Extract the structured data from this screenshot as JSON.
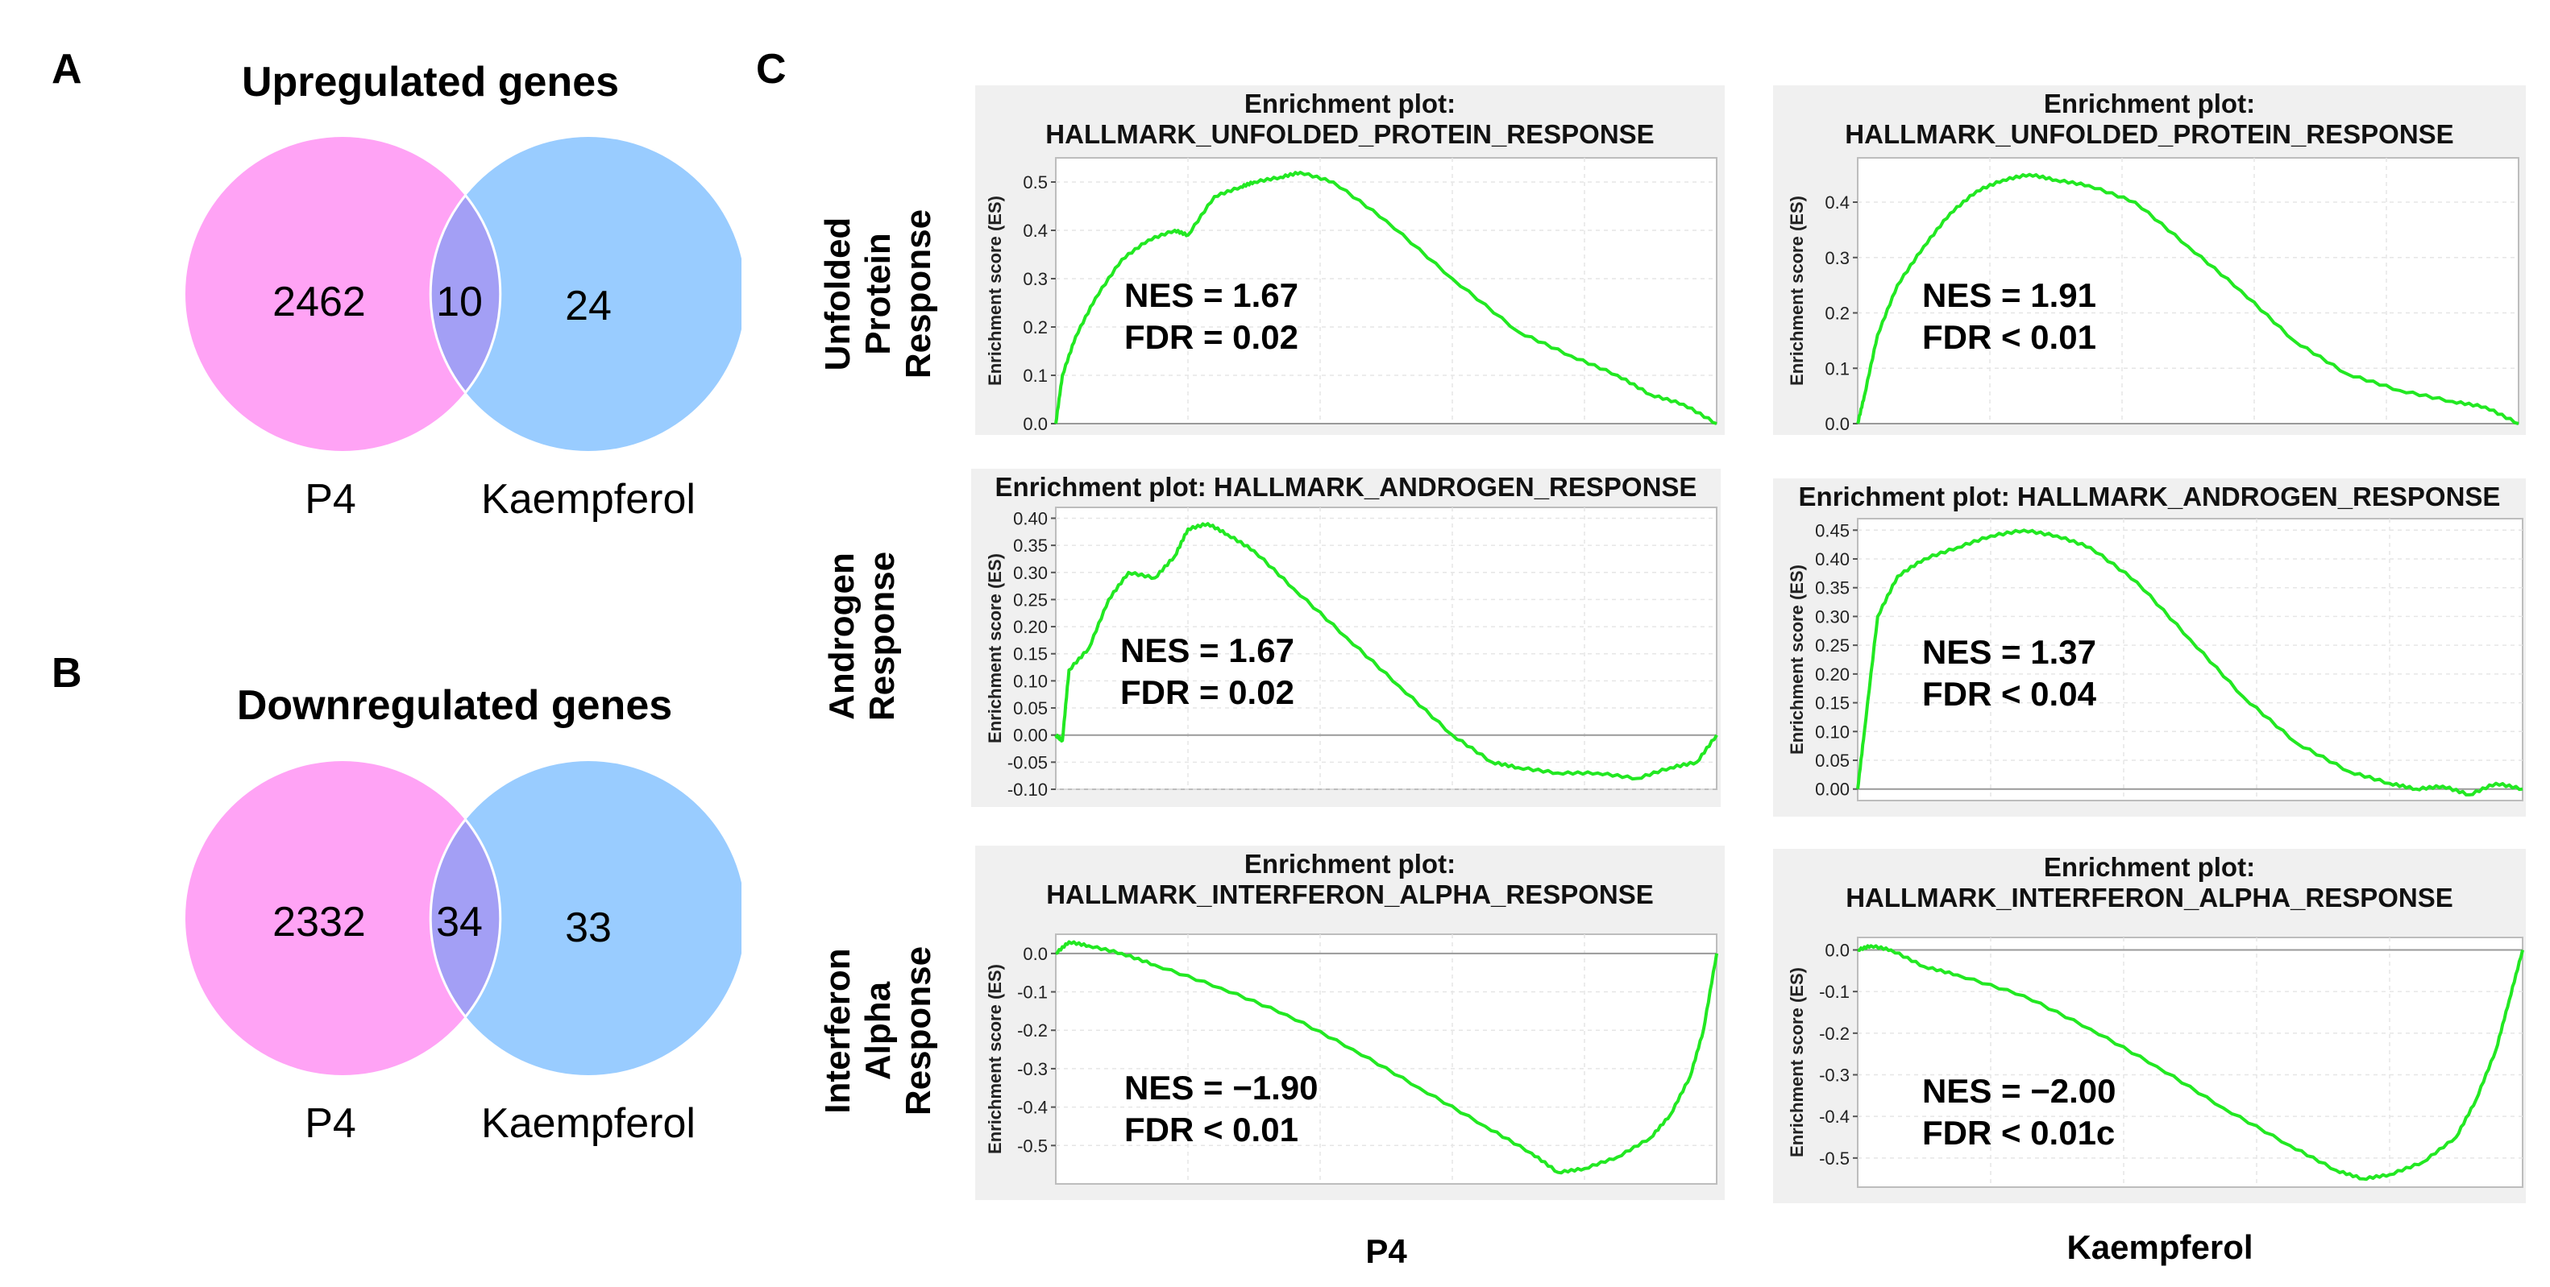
{
  "panels": {
    "a": {
      "letter": "A",
      "title": "Upregulated genes",
      "left_label": "P4",
      "right_label": "Kaempferol",
      "left_only": "2462",
      "overlap": "10",
      "right_only": "24"
    },
    "b": {
      "letter": "B",
      "title": "Downregulated genes",
      "left_label": "P4",
      "right_label": "Kaempferol",
      "left_only": "2332",
      "overlap": "34",
      "right_only": "33"
    },
    "c": {
      "letter": "C",
      "row_labels": [
        "Unfolded Protein Response",
        "Androgen Response",
        "Interferon Alpha Response"
      ],
      "col_labels": [
        "P4",
        "Kaempferol"
      ],
      "y_axis_label": "Enrichment score (ES)"
    }
  },
  "colors": {
    "p4_circle": "#ffa3f5",
    "kaempferol_circle": "#99ccff",
    "overlap": "#a39ff5",
    "curve": "#22e822"
  },
  "chart_data": [
    {
      "type": "line",
      "title": "Enrichment plot:\nHALLMARK_UNFOLDED_PROTEIN_RESPONSE",
      "column": "P4",
      "ylabel": "Enrichment score (ES)",
      "ylim": [
        0,
        0.55
      ],
      "yticks": [
        "0.0",
        "0.1",
        "0.2",
        "0.3",
        "0.4",
        "0.5"
      ],
      "tick_values": [
        0,
        0.1,
        0.2,
        0.3,
        0.4,
        0.5
      ],
      "annotation": [
        "NES = 1.67",
        "FDR = 0.02"
      ],
      "x": [
        0,
        0.01,
        0.03,
        0.06,
        0.1,
        0.14,
        0.18,
        0.2,
        0.24,
        0.28,
        0.3,
        0.34,
        0.37,
        0.42,
        0.5,
        0.6,
        0.7,
        0.78,
        0.85,
        0.9,
        0.95,
        1.0
      ],
      "y": [
        0,
        0.1,
        0.18,
        0.26,
        0.34,
        0.38,
        0.4,
        0.39,
        0.47,
        0.49,
        0.5,
        0.51,
        0.52,
        0.5,
        0.42,
        0.3,
        0.19,
        0.14,
        0.1,
        0.06,
        0.04,
        0.0
      ]
    },
    {
      "type": "line",
      "title": "Enrichment plot:\nHALLMARK_UNFOLDED_PROTEIN_RESPONSE",
      "column": "Kaempferol",
      "ylabel": "Enrichment score (ES)",
      "ylim": [
        0,
        0.48
      ],
      "yticks": [
        "0.0",
        "0.1",
        "0.2",
        "0.3",
        "0.4"
      ],
      "tick_values": [
        0,
        0.1,
        0.2,
        0.3,
        0.4
      ],
      "annotation": [
        "NES = 1.91",
        "FDR < 0.01"
      ],
      "x": [
        0,
        0.01,
        0.03,
        0.06,
        0.1,
        0.14,
        0.18,
        0.22,
        0.26,
        0.3,
        0.35,
        0.42,
        0.5,
        0.58,
        0.66,
        0.74,
        0.82,
        0.9,
        0.95,
        1.0
      ],
      "y": [
        0,
        0.05,
        0.16,
        0.25,
        0.32,
        0.38,
        0.42,
        0.44,
        0.45,
        0.44,
        0.43,
        0.4,
        0.32,
        0.24,
        0.15,
        0.09,
        0.06,
        0.04,
        0.03,
        0.0
      ]
    },
    {
      "type": "line",
      "title": "Enrichment plot: HALLMARK_ANDROGEN_RESPONSE",
      "column": "P4",
      "ylabel": "Enrichment score (ES)",
      "ylim": [
        -0.1,
        0.42
      ],
      "yticks": [
        "-0.10",
        "-0.05",
        "0.00",
        "0.05",
        "0.10",
        "0.15",
        "0.20",
        "0.25",
        "0.30",
        "0.35",
        "0.40"
      ],
      "tick_values": [
        -0.1,
        -0.05,
        0,
        0.05,
        0.1,
        0.15,
        0.2,
        0.25,
        0.3,
        0.35,
        0.4
      ],
      "annotation": [
        "NES = 1.67",
        "FDR = 0.02"
      ],
      "x": [
        0,
        0.01,
        0.02,
        0.05,
        0.08,
        0.11,
        0.15,
        0.18,
        0.2,
        0.23,
        0.26,
        0.3,
        0.36,
        0.44,
        0.52,
        0.6,
        0.66,
        0.7,
        0.76,
        0.82,
        0.88,
        0.93,
        0.97,
        1.0
      ],
      "y": [
        0,
        -0.01,
        0.12,
        0.16,
        0.25,
        0.3,
        0.29,
        0.33,
        0.38,
        0.39,
        0.37,
        0.34,
        0.27,
        0.18,
        0.09,
        0.0,
        -0.05,
        -0.06,
        -0.07,
        -0.07,
        -0.08,
        -0.06,
        -0.05,
        0.0
      ]
    },
    {
      "type": "line",
      "title": "Enrichment plot: HALLMARK_ANDROGEN_RESPONSE",
      "column": "Kaempferol",
      "ylabel": "Enrichment score (ES)",
      "ylim": [
        -0.02,
        0.47
      ],
      "yticks": [
        "0.00",
        "0.05",
        "0.10",
        "0.15",
        "0.20",
        "0.25",
        "0.30",
        "0.35",
        "0.40",
        "0.45"
      ],
      "tick_values": [
        0,
        0.05,
        0.1,
        0.15,
        0.2,
        0.25,
        0.3,
        0.35,
        0.4,
        0.45
      ],
      "annotation": [
        "NES = 1.37",
        "FDR < 0.04"
      ],
      "x": [
        0,
        0.01,
        0.03,
        0.06,
        0.1,
        0.15,
        0.2,
        0.25,
        0.3,
        0.35,
        0.42,
        0.5,
        0.58,
        0.66,
        0.74,
        0.8,
        0.84,
        0.88,
        0.92,
        0.96,
        1.0
      ],
      "y": [
        0,
        0.1,
        0.3,
        0.37,
        0.4,
        0.42,
        0.44,
        0.45,
        0.44,
        0.42,
        0.36,
        0.26,
        0.16,
        0.08,
        0.03,
        0.01,
        0.0,
        0.005,
        -0.01,
        0.01,
        0.0
      ]
    },
    {
      "type": "line",
      "title": "Enrichment plot:\nHALLMARK_INTERFERON_ALPHA_RESPONSE",
      "column": "P4",
      "ylabel": "Enrichment score (ES)",
      "ylim": [
        -0.6,
        0.05
      ],
      "yticks": [
        "-0.5",
        "-0.4",
        "-0.3",
        "-0.2",
        "-0.1",
        "0.0"
      ],
      "tick_values": [
        -0.5,
        -0.4,
        -0.3,
        -0.2,
        -0.1,
        0
      ],
      "annotation": [
        "NES = −1.90",
        "FDR < 0.01"
      ],
      "x": [
        0,
        0.02,
        0.05,
        0.1,
        0.15,
        0.25,
        0.35,
        0.45,
        0.55,
        0.65,
        0.72,
        0.76,
        0.8,
        0.85,
        0.9,
        0.93,
        0.96,
        0.98,
        1.0
      ],
      "y": [
        0,
        0.03,
        0.02,
        0.0,
        -0.03,
        -0.09,
        -0.16,
        -0.25,
        -0.35,
        -0.45,
        -0.52,
        -0.57,
        -0.56,
        -0.53,
        -0.48,
        -0.42,
        -0.32,
        -0.2,
        0.0
      ]
    },
    {
      "type": "line",
      "title": "Enrichment plot:\nHALLMARK_INTERFERON_ALPHA_RESPONSE",
      "column": "Kaempferol",
      "ylabel": "Enrichment score (ES)",
      "ylim": [
        -0.57,
        0.03
      ],
      "yticks": [
        "-0.5",
        "-0.4",
        "-0.3",
        "-0.2",
        "-0.1",
        "0.0"
      ],
      "tick_values": [
        -0.5,
        -0.4,
        -0.3,
        -0.2,
        -0.1,
        0
      ],
      "annotation": [
        "NES = −2.00",
        "FDR < 0.01c"
      ],
      "x": [
        0,
        0.02,
        0.05,
        0.1,
        0.15,
        0.25,
        0.35,
        0.45,
        0.55,
        0.65,
        0.72,
        0.76,
        0.8,
        0.85,
        0.9,
        0.93,
        0.96,
        0.98,
        1.0
      ],
      "y": [
        0,
        0.01,
        0.0,
        -0.04,
        -0.06,
        -0.11,
        -0.19,
        -0.28,
        -0.38,
        -0.47,
        -0.53,
        -0.55,
        -0.54,
        -0.51,
        -0.45,
        -0.36,
        -0.24,
        -0.12,
        0.0
      ]
    }
  ]
}
